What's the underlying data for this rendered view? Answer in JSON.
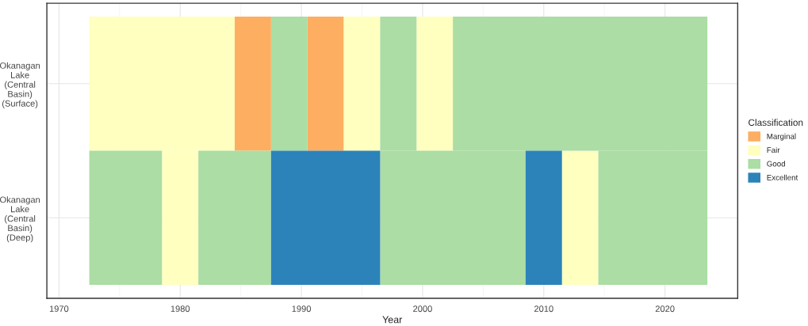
{
  "chart_data": {
    "type": "bar",
    "orientation": "horizontal",
    "xlabel": "Year",
    "legend_title": "Classification",
    "legend": "right",
    "grid": true,
    "categories": [
      "Okanagan Lake (Central Basin) (Surface)",
      "Okanagan Lake (Central Basin) (Deep)"
    ],
    "xlim": [
      1969,
      2026
    ],
    "xticks": [
      1970,
      1980,
      1990,
      2000,
      2010,
      2020
    ],
    "series": [
      {
        "name": "Marginal",
        "color": "#fdae61",
        "base": [
          1984.5,
          null
        ],
        "values": [
          3,
          null
        ]
      },
      {
        "color": "#fdae61",
        "base": [
          1990.5,
          null
        ],
        "values": [
          3,
          null
        ]
      },
      {
        "name": "Fair",
        "color": "#ffffbf",
        "base": [
          1972.5,
          1978.5
        ],
        "values": [
          12,
          3
        ]
      },
      {
        "color": "#ffffbf",
        "base": [
          1993.5,
          2011.5
        ],
        "values": [
          3,
          3
        ]
      },
      {
        "color": "#ffffbf",
        "base": [
          1999.5,
          null
        ],
        "values": [
          3,
          null
        ]
      },
      {
        "name": "Good",
        "color": "#abdda4",
        "base": [
          1987.5,
          1972.5
        ],
        "values": [
          3,
          6
        ]
      },
      {
        "color": "#abdda4",
        "base": [
          1996.5,
          1981.5
        ],
        "values": [
          3,
          6
        ]
      },
      {
        "color": "#abdda4",
        "base": [
          2002.5,
          1996.5
        ],
        "values": [
          21,
          12
        ]
      },
      {
        "color": "#abdda4",
        "base": [
          null,
          2014.5
        ],
        "values": [
          null,
          9
        ]
      },
      {
        "name": "Excellent",
        "color": "#2b83ba",
        "base": [
          null,
          1987.5
        ],
        "values": [
          null,
          9
        ]
      },
      {
        "color": "#2b83ba",
        "base": [
          null,
          2008.5
        ],
        "values": [
          null,
          3
        ]
      }
    ]
  }
}
